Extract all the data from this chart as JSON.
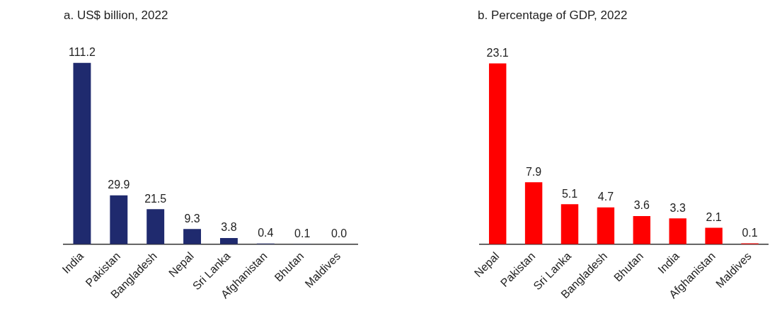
{
  "chart_data": [
    {
      "type": "bar",
      "title": "a. US$ billion, 2022",
      "categories": [
        "India",
        "Pakistan",
        "Bangladesh",
        "Nepal",
        "Sri Lanka",
        "Afghanistan",
        "Bhutan",
        "Maldives"
      ],
      "values": [
        111.2,
        29.9,
        21.5,
        9.3,
        3.8,
        0.4,
        0.1,
        0.0
      ],
      "value_labels": [
        "111.2",
        "29.9",
        "21.5",
        "9.3",
        "3.8",
        "0.4",
        "0.1",
        "0.0"
      ],
      "color": "#1f2a6e",
      "grid": false,
      "legend": false
    },
    {
      "type": "bar",
      "title": "b. Percentage of GDP, 2022",
      "categories": [
        "Nepal",
        "Pakistan",
        "Sri Lanka",
        "Bangladesh",
        "Bhutan",
        "India",
        "Afghanistan",
        "Maldives"
      ],
      "values": [
        23.1,
        7.9,
        5.1,
        4.7,
        3.6,
        3.3,
        2.1,
        0.1
      ],
      "value_labels": [
        "23.1",
        "7.9",
        "5.1",
        "4.7",
        "3.6",
        "3.3",
        "2.1",
        "0.1"
      ],
      "color": "#ff0000",
      "grid": false,
      "legend": false
    }
  ]
}
